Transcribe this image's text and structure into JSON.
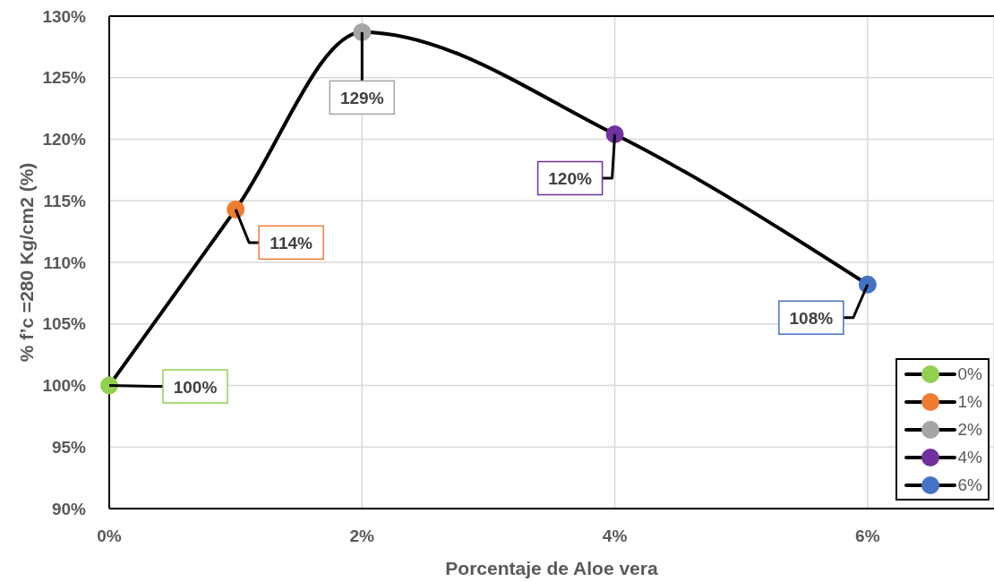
{
  "chart_data": {
    "type": "line",
    "xlabel": "Porcentaje de Aloe vera",
    "ylabel": "% f’c =280 Kg/cm2 (%)",
    "xlim": [
      0,
      7
    ],
    "xticks": [
      {
        "value": 0,
        "label": "0%"
      },
      {
        "value": 2,
        "label": "2%"
      },
      {
        "value": 4,
        "label": "4%"
      },
      {
        "value": 6,
        "label": "6%"
      }
    ],
    "ylim": [
      90,
      130
    ],
    "yticks": [
      {
        "value": 90,
        "label": "90%"
      },
      {
        "value": 95,
        "label": "95%"
      },
      {
        "value": 100,
        "label": "100%"
      },
      {
        "value": 105,
        "label": "105%"
      },
      {
        "value": 110,
        "label": "110%"
      },
      {
        "value": 115,
        "label": "115%"
      },
      {
        "value": 120,
        "label": "120%"
      },
      {
        "value": 125,
        "label": "125%"
      },
      {
        "value": 130,
        "label": "130%"
      }
    ],
    "grid": true,
    "legend": "bottom right",
    "series": [
      {
        "color": "#000000",
        "marker": "none",
        "x": [
          0,
          1,
          2,
          4,
          6
        ],
        "values": [
          100,
          114.3,
          128.7,
          120.4,
          108.2
        ]
      },
      {
        "type": "scatter",
        "name": "0%",
        "color": "#92d050",
        "marker": "circle",
        "x": [
          0
        ],
        "values": [
          100
        ],
        "value_labels": [
          "100%"
        ]
      },
      {
        "type": "scatter",
        "name": "1%",
        "color": "#ed7d31",
        "marker": "circle",
        "x": [
          1
        ],
        "values": [
          114.3
        ],
        "value_labels": [
          "114%"
        ]
      },
      {
        "type": "scatter",
        "name": "2%",
        "color": "#a5a5a5",
        "marker": "circle",
        "x": [
          2
        ],
        "values": [
          128.7
        ],
        "value_labels": [
          "129%"
        ]
      },
      {
        "type": "scatter",
        "name": "4%",
        "color": "#7030a0",
        "marker": "circle",
        "x": [
          4
        ],
        "values": [
          120.4
        ],
        "value_labels": [
          "120%"
        ]
      },
      {
        "type": "scatter",
        "name": "6%",
        "color": "#4472c4",
        "marker": "circle",
        "x": [
          6
        ],
        "values": [
          108.2
        ],
        "value_labels": [
          "108%"
        ]
      }
    ]
  }
}
